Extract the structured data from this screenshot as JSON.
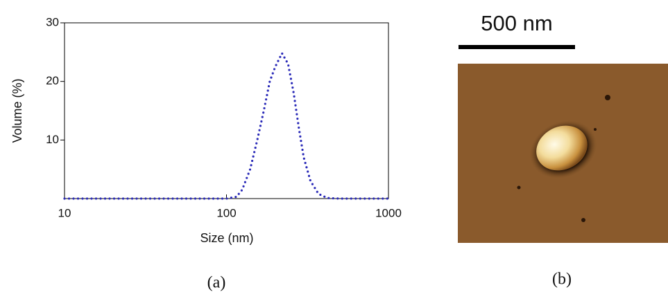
{
  "chart_data": {
    "type": "line",
    "xlabel": "Size (nm)",
    "ylabel": "Volume (%)",
    "x": [
      10,
      20,
      40,
      80,
      100,
      115,
      125,
      140,
      155,
      170,
      185,
      200,
      220,
      240,
      260,
      280,
      300,
      330,
      370,
      420,
      500,
      700,
      1000
    ],
    "values": [
      0,
      0,
      0,
      0,
      0,
      0.3,
      1.5,
      5,
      10,
      15,
      20,
      22.5,
      24.8,
      23,
      18,
      12,
      7,
      3,
      0.8,
      0.1,
      0,
      0,
      0
    ],
    "color": "#2a2ab8",
    "xscale": "log",
    "xlim": [
      10,
      1000
    ],
    "xticks": [
      10,
      100,
      1000
    ],
    "ylim": [
      0,
      30
    ],
    "yticks": [
      10,
      20,
      30
    ]
  },
  "figure": {
    "scale_bar_label": "500 nm",
    "panel_labels": [
      "(a)",
      "(b)"
    ]
  }
}
